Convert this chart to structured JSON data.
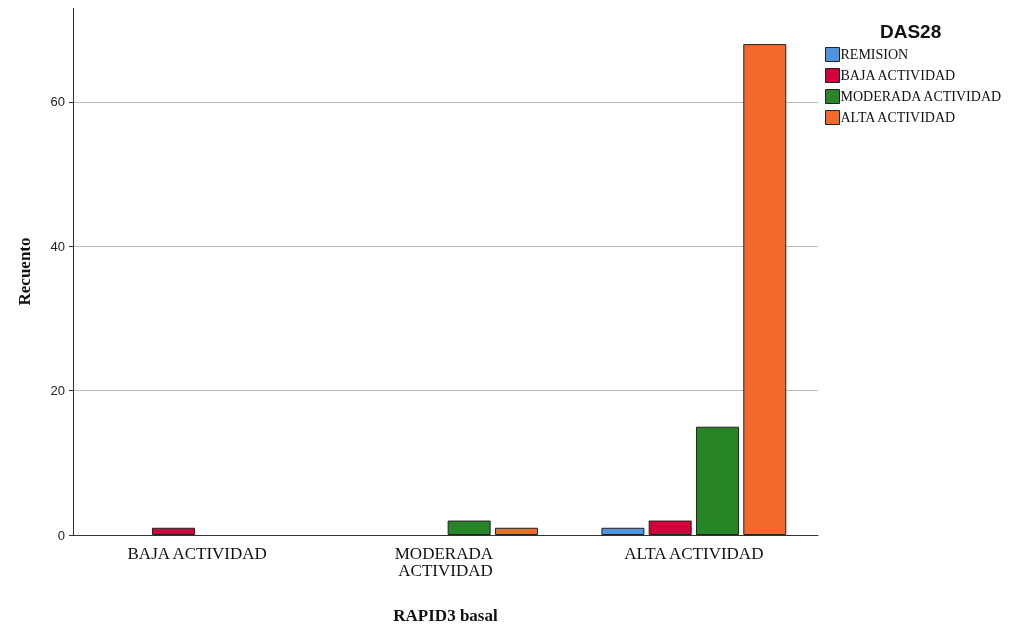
{
  "chart_data": {
    "type": "bar",
    "categories": [
      "BAJA ACTIVIDAD",
      "MODERADA ACTIVIDAD",
      "ALTA ACTIVIDAD"
    ],
    "series": [
      {
        "name": "REMISION",
        "color": "#5093e0",
        "values": [
          null,
          null,
          1
        ]
      },
      {
        "name": "BAJA ACTIVIDAD",
        "color": "#d5003a",
        "values": [
          1,
          null,
          2
        ]
      },
      {
        "name": "MODERADA ACTIVIDAD",
        "color": "#278528",
        "values": [
          null,
          2,
          15
        ]
      },
      {
        "name": "ALTA ACTIVIDAD",
        "color": "#f3692b",
        "values": [
          null,
          1,
          68
        ]
      }
    ],
    "xlabel": "RAPID3 basal",
    "ylabel": "Recuento",
    "legend_title": "DAS28",
    "ylim": [
      0,
      73
    ],
    "yticks": [
      0,
      20,
      40,
      60
    ],
    "grid": "y",
    "legend": "top right"
  }
}
